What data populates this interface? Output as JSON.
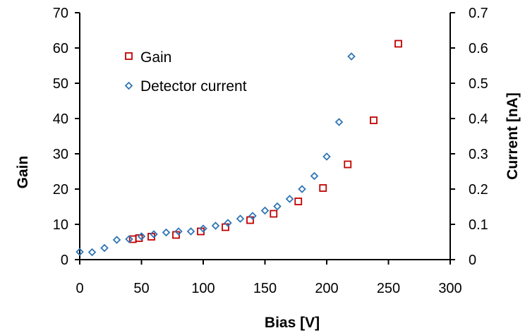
{
  "chart_data": {
    "type": "scatter",
    "xlabel": "Bias [V]",
    "ylabel": "Gain",
    "y2label": "Current [nA]",
    "xlim": [
      0,
      300
    ],
    "ylim": [
      0,
      70
    ],
    "y2lim": [
      0,
      0.7
    ],
    "xticks": [
      0,
      50,
      100,
      150,
      200,
      250,
      300
    ],
    "yticks": [
      0,
      10,
      20,
      30,
      40,
      50,
      60,
      70
    ],
    "y2ticks": [
      "0",
      "0.1",
      "0.2",
      "0.3",
      "0.4",
      "0.5",
      "0.6",
      "0.7"
    ],
    "grid": false,
    "legend_position": "upper-left",
    "series": [
      {
        "name": "Gain",
        "axis": "left",
        "marker": "square",
        "color": "#c00000",
        "x": [
          43,
          48,
          58,
          78,
          98,
          118,
          138,
          157,
          177,
          197,
          217,
          238,
          258
        ],
        "y": [
          5.8,
          6.1,
          6.5,
          7.0,
          8.0,
          9.2,
          11.2,
          13.0,
          16.5,
          20.3,
          27.0,
          39.5,
          61.2
        ]
      },
      {
        "name": "Detector current",
        "axis": "right",
        "marker": "diamond",
        "color": "#2e75b6",
        "x": [
          0,
          10,
          20,
          30,
          40,
          50,
          60,
          70,
          80,
          90,
          100,
          110,
          120,
          130,
          140,
          150,
          160,
          170,
          180,
          190,
          200,
          210,
          220
        ],
        "y": [
          0.022,
          0.021,
          0.033,
          0.056,
          0.058,
          0.066,
          0.072,
          0.077,
          0.08,
          0.08,
          0.088,
          0.096,
          0.104,
          0.116,
          0.124,
          0.139,
          0.151,
          0.172,
          0.2,
          0.237,
          0.292,
          0.39,
          0.576
        ]
      }
    ]
  }
}
